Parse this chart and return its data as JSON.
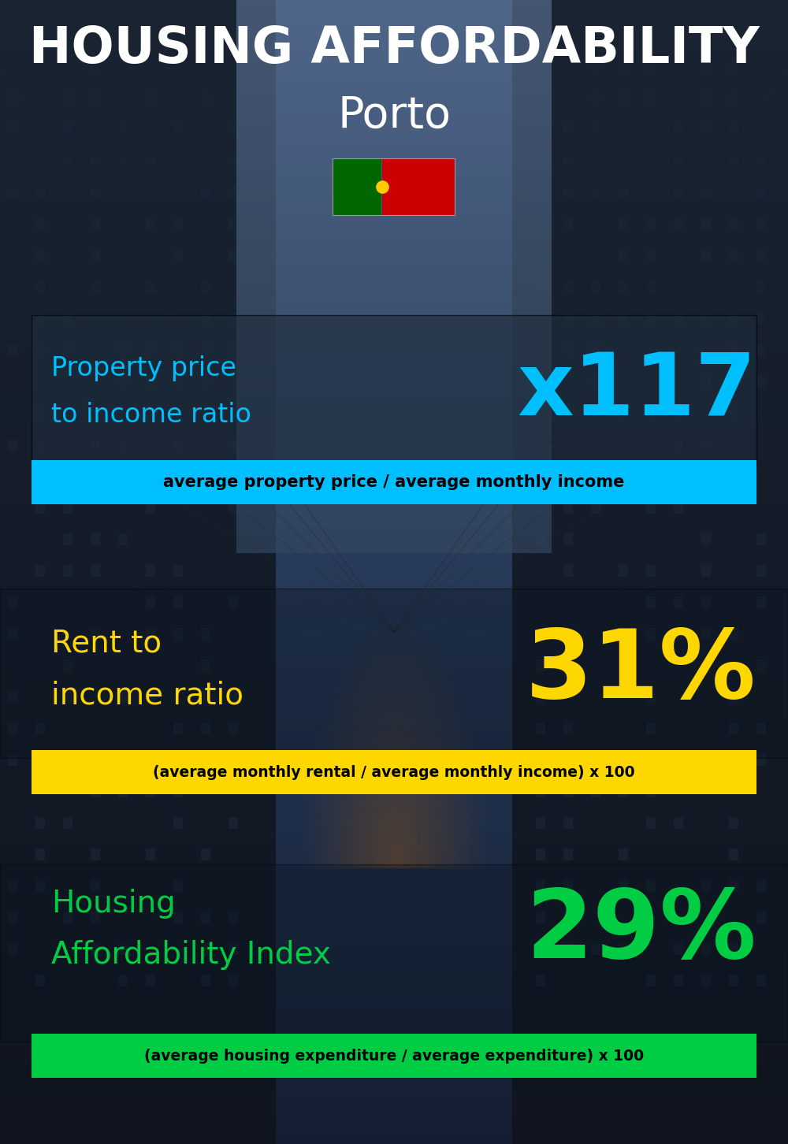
{
  "title_line1": "HOUSING AFFORDABILITY",
  "title_line2": "Porto",
  "bg_color": "#080e18",
  "section1_label_line1": "Property price",
  "section1_label_line2": "to income ratio",
  "section1_value": "x117",
  "section1_label_color": "#00bfff",
  "section1_value_color": "#00bfff",
  "section1_subtitle": "average property price / average monthly income",
  "section1_subtitle_bg": "#00bfff",
  "section2_label_line1": "Rent to",
  "section2_label_line2": "income ratio",
  "section2_value": "31%",
  "section2_label_color": "#ffd700",
  "section2_value_color": "#ffd700",
  "section2_subtitle": "(average monthly rental / average monthly income) x 100",
  "section2_subtitle_bg": "#ffd700",
  "section3_label_line1": "Housing",
  "section3_label_line2": "Affordability Index",
  "section3_value": "29%",
  "section3_label_color": "#00cc44",
  "section3_value_color": "#00cc44",
  "section3_subtitle": "(average housing expenditure / average expenditure) x 100",
  "section3_subtitle_bg": "#00cc44",
  "title_color": "#ffffff",
  "subtitle_text_color": "#000000",
  "flag_green": "#006600",
  "flag_red": "#cc0000",
  "flag_yellow": "#ffcc00"
}
